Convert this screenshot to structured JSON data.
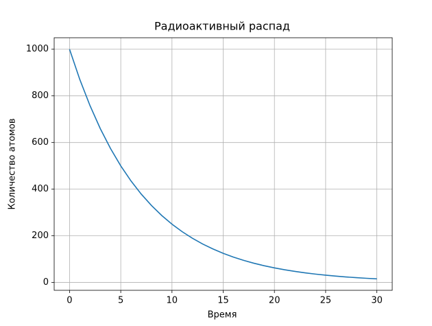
{
  "chart_data": {
    "type": "line",
    "title": "Радиоактивный распад",
    "x_label": "Время",
    "y_label": "Количество атомов",
    "x": [
      0,
      1,
      2,
      3,
      4,
      5,
      6,
      7,
      8,
      9,
      10,
      11,
      12,
      13,
      14,
      15,
      16,
      17,
      18,
      19,
      20,
      21,
      22,
      23,
      24,
      25,
      26,
      27,
      28,
      29,
      30
    ],
    "series": [
      {
        "name": "Количество атомов",
        "color": "#1f77b4",
        "values": [
          1000,
          870.6,
          757.9,
          659.8,
          574.3,
          500,
          435.3,
          378.9,
          329.9,
          287.2,
          250,
          217.6,
          189.5,
          164.9,
          143.6,
          125,
          108.8,
          94.7,
          82.5,
          71.8,
          62.5,
          54.4,
          47.4,
          41.2,
          35.9,
          31.3,
          27.2,
          23.7,
          20.6,
          17.9,
          15.6
        ]
      }
    ],
    "xlim": [
      -1.5,
      31.5
    ],
    "ylim": [
      -33.6,
      1049.2
    ],
    "xticks": [
      0,
      5,
      10,
      15,
      20,
      25,
      30
    ],
    "yticks": [
      0,
      200,
      400,
      600,
      800,
      1000
    ],
    "grid": true
  }
}
